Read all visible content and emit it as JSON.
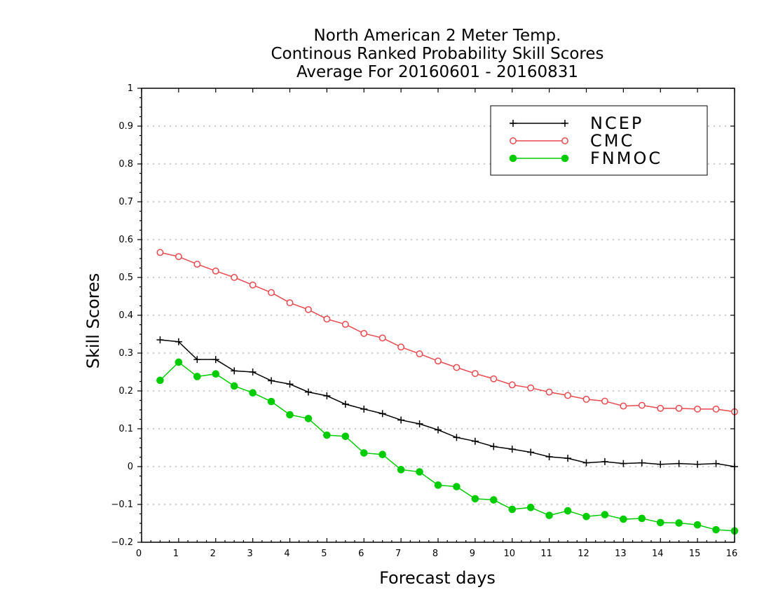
{
  "chart_data": {
    "type": "line",
    "title": [
      "North American 2 Meter Temp.",
      "Continous Ranked Probability Skill Scores",
      "Average For 20160601 - 20160831"
    ],
    "xlabel": "Forecast days",
    "ylabel": "Skill Scores",
    "xlim": [
      0,
      16
    ],
    "ylim": [
      -0.2,
      1
    ],
    "xticks": [
      0,
      1,
      2,
      3,
      4,
      5,
      6,
      7,
      8,
      9,
      10,
      11,
      12,
      13,
      14,
      15,
      16
    ],
    "yticks": [
      -0.2,
      -0.1,
      0,
      0.1,
      0.2,
      0.3,
      0.4,
      0.5,
      0.6,
      0.7,
      0.8,
      0.9,
      1
    ],
    "xtick_labels": [
      "0",
      "1",
      "2",
      "3",
      "4",
      "5",
      "6",
      "7",
      "8",
      "9",
      "10",
      "11",
      "12",
      "13",
      "14",
      "15",
      "16"
    ],
    "ytick_labels": [
      "−0.2",
      "−0.1",
      "0",
      "0.1",
      "0.2",
      "0.3",
      "0.4",
      "0.5",
      "0.6",
      "0.7",
      "0.8",
      "0.9",
      "1"
    ],
    "grid": "horizontal-dotted",
    "legend_position": "top-right",
    "x": [
      0.5,
      1,
      1.5,
      2,
      2.5,
      3,
      3.5,
      4,
      4.5,
      5,
      5.5,
      6,
      6.5,
      7,
      7.5,
      8,
      8.5,
      9,
      9.5,
      10,
      10.5,
      11,
      11.5,
      12,
      12.5,
      13,
      13.5,
      14,
      14.5,
      15,
      15.5,
      16
    ],
    "series": [
      {
        "name": "NCEP",
        "color": "#000000",
        "marker": "plus",
        "values": [
          0.335,
          0.33,
          0.283,
          0.283,
          0.253,
          0.25,
          0.227,
          0.218,
          0.197,
          0.187,
          0.165,
          0.152,
          0.14,
          0.123,
          0.113,
          0.097,
          0.077,
          0.067,
          0.053,
          0.046,
          0.038,
          0.026,
          0.022,
          0.01,
          0.013,
          0.008,
          0.01,
          0.006,
          0.008,
          0.006,
          0.008,
          0.0
        ]
      },
      {
        "name": "CMC",
        "color": "#e8494e",
        "marker": "open-circle",
        "values": [
          0.566,
          0.555,
          0.535,
          0.517,
          0.5,
          0.48,
          0.46,
          0.433,
          0.415,
          0.39,
          0.376,
          0.352,
          0.34,
          0.316,
          0.298,
          0.279,
          0.262,
          0.246,
          0.232,
          0.216,
          0.208,
          0.197,
          0.188,
          0.178,
          0.173,
          0.16,
          0.162,
          0.154,
          0.154,
          0.152,
          0.152,
          0.145
        ]
      },
      {
        "name": "FNMOC",
        "color": "#00cc00",
        "marker": "filled-circle",
        "values": [
          0.228,
          0.276,
          0.238,
          0.245,
          0.213,
          0.195,
          0.172,
          0.137,
          0.127,
          0.083,
          0.08,
          0.036,
          0.032,
          -0.008,
          -0.014,
          -0.049,
          -0.053,
          -0.085,
          -0.088,
          -0.113,
          -0.108,
          -0.129,
          -0.117,
          -0.132,
          -0.127,
          -0.139,
          -0.137,
          -0.148,
          -0.149,
          -0.154,
          -0.167,
          -0.17
        ]
      }
    ]
  }
}
